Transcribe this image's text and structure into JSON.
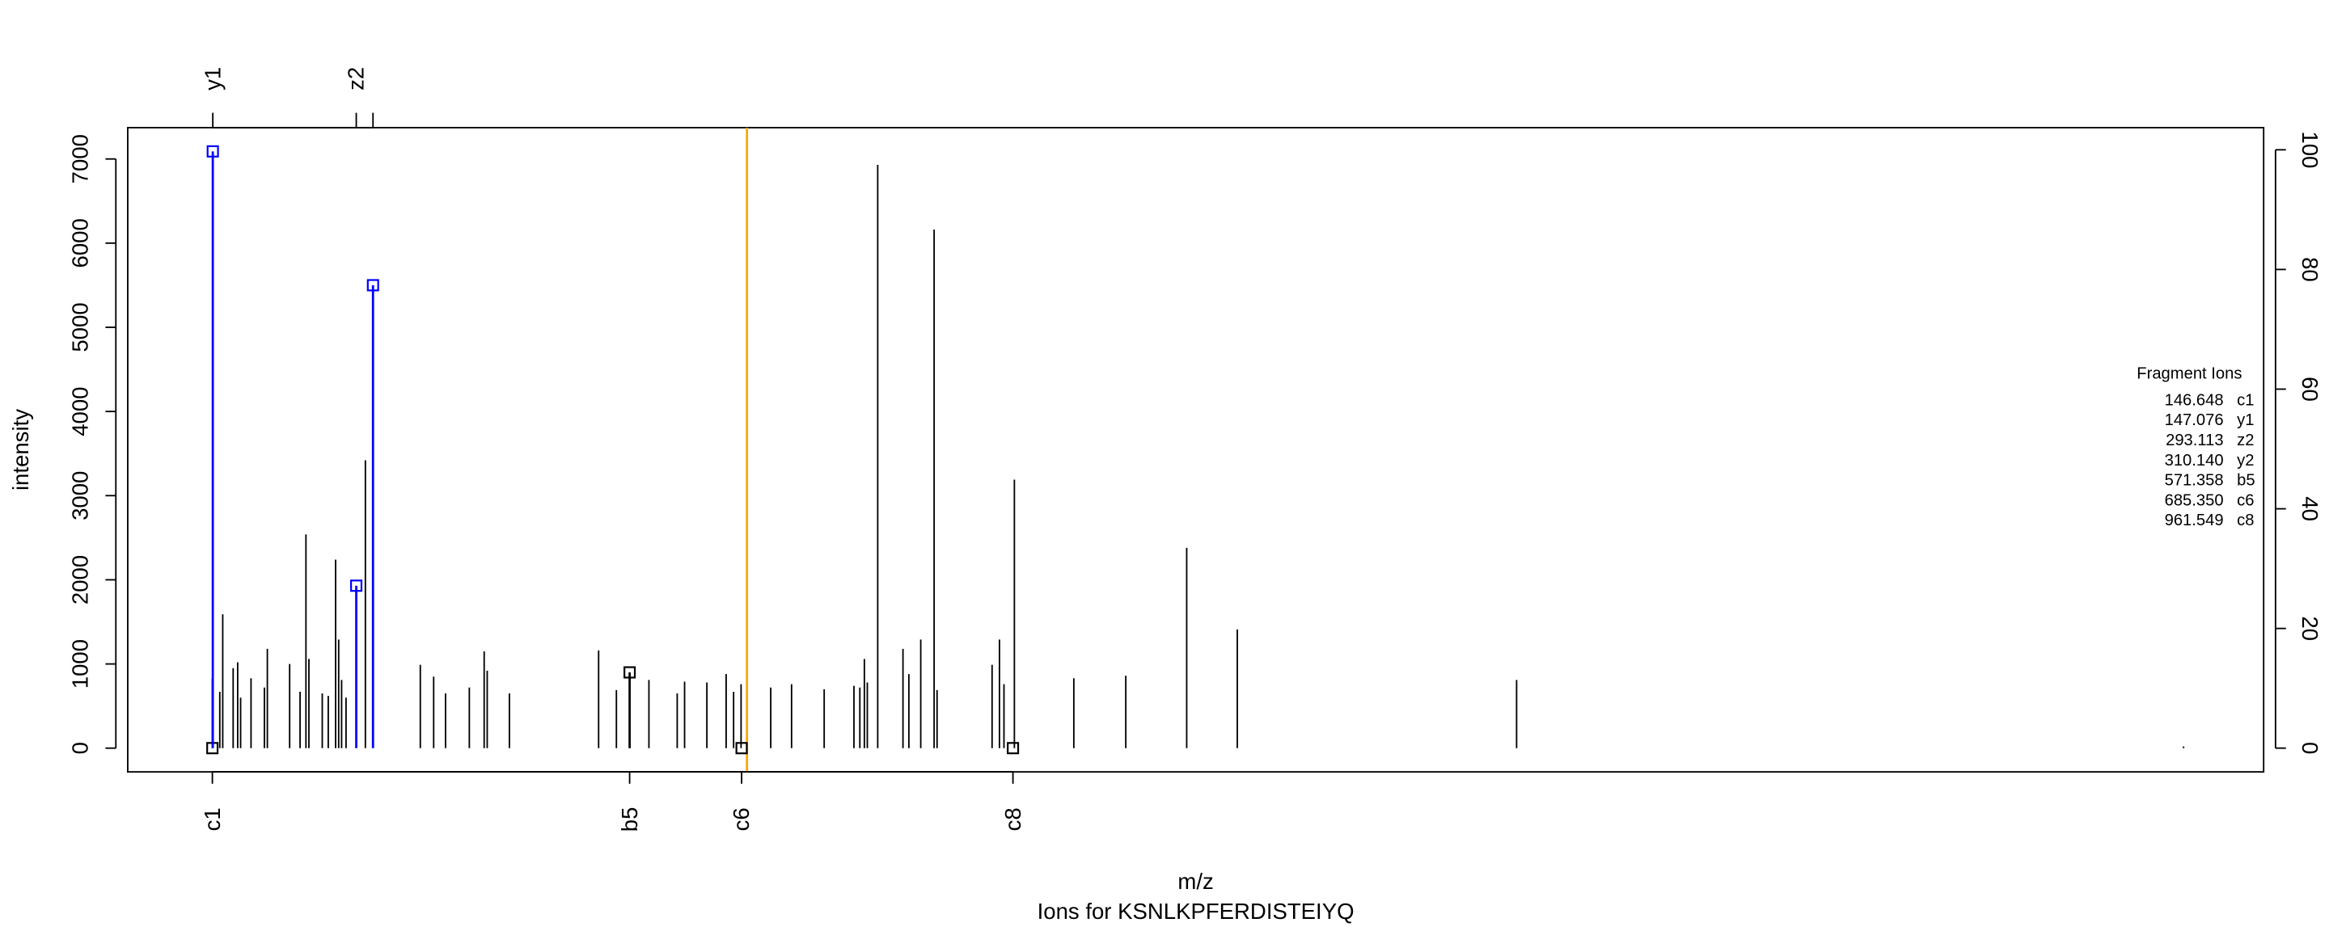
{
  "chart_data": {
    "type": "spectrum",
    "title": "Ions for KSNLKPFERDISTEIYQ",
    "x_label": "m/z",
    "y_label": "intensity",
    "xlim": [
      60.5,
      2234.6
    ],
    "ylim": [
      -282,
      7372
    ],
    "yticks": [
      0,
      1000,
      2000,
      3000,
      4000,
      5000,
      6000,
      7000
    ],
    "y2lim": [
      -3.97,
      103.7
    ],
    "y2ticks": [
      0,
      20,
      40,
      60,
      80,
      100
    ],
    "peaks": {
      "color": "#000000",
      "mz": [
        146.6,
        154.2,
        157.2,
        167.8,
        172.4,
        175.4,
        186.0,
        199.6,
        202.6,
        225.3,
        235.9,
        241.9,
        244.9,
        258.5,
        264.6,
        272.1,
        275.2,
        278.2,
        282.7,
        302.4,
        358.3,
        371.9,
        384.0,
        408.2,
        423.3,
        426.4,
        449.0,
        539.8,
        557.9,
        571.4,
        591.0,
        619.8,
        627.3,
        650.0,
        669.6,
        677.2,
        684.8,
        690.8,
        715.0,
        736.2,
        769.4,
        799.7,
        805.7,
        810.3,
        813.3,
        823.9,
        849.6,
        855.6,
        867.7,
        881.3,
        884.3,
        940.3,
        947.8,
        952.4,
        963.0,
        1023.5,
        1076.4,
        1138.4,
        1189.9,
        1474.2,
        2153.1
      ],
      "intensity": [
        830,
        670,
        1590,
        950,
        1020,
        600,
        830,
        720,
        1180,
        1000,
        670,
        2540,
        1060,
        650,
        620,
        2240,
        1290,
        810,
        600,
        3420,
        990,
        850,
        650,
        720,
        1150,
        920,
        650,
        1160,
        690,
        900,
        810,
        650,
        790,
        780,
        880,
        670,
        760,
        6450,
        720,
        760,
        700,
        740,
        720,
        1060,
        780,
        6930,
        1180,
        880,
        1290,
        6160,
        690,
        990,
        1290,
        760,
        3190,
        830,
        860,
        2380,
        1410,
        810,
        20
      ]
    },
    "marker_line": {
      "mz": 690.8,
      "color": "#ffa500"
    },
    "legend_title": "Fragment Ions",
    "ions": [
      {
        "mz": 146.648,
        "mz_label": "146.648",
        "name": "c1",
        "intensity": 0,
        "color": "#000000",
        "axis": "bottom",
        "label_shown": true
      },
      {
        "mz": 147.076,
        "mz_label": "147.076",
        "name": "y1",
        "intensity": 7090,
        "color": "#0000ff",
        "axis": "top",
        "label_shown": true
      },
      {
        "mz": 293.113,
        "mz_label": "293.113",
        "name": "z2",
        "intensity": 1930,
        "color": "#0000ff",
        "axis": "top",
        "label_shown": true
      },
      {
        "mz": 310.14,
        "mz_label": "310.140",
        "name": "y2",
        "intensity": 5500,
        "color": "#0000ff",
        "axis": "top",
        "label_shown": false
      },
      {
        "mz": 571.358,
        "mz_label": "571.358",
        "name": "b5",
        "intensity": 900,
        "color": "#000000",
        "axis": "bottom",
        "label_shown": true
      },
      {
        "mz": 685.35,
        "mz_label": "685.350",
        "name": "c6",
        "intensity": 0,
        "color": "#000000",
        "axis": "bottom",
        "label_shown": true
      },
      {
        "mz": 961.549,
        "mz_label": "961.549",
        "name": "c8",
        "intensity": 0,
        "color": "#000000",
        "axis": "bottom",
        "label_shown": true
      }
    ]
  }
}
